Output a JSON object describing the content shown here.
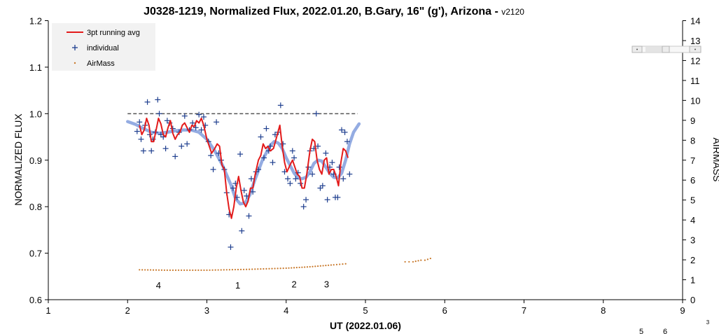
{
  "chart_data": {
    "type": "scatter",
    "title": "J0328-1219, Normalized Flux, 2022.01.20, B.Gary, 16\" (g'), Arizona - ",
    "title_version": "v2120",
    "xlabel": "UT (2022.01.06)",
    "ylabel": "NORMALIZED FLUX",
    "y2label": "AIRMASS",
    "xlim": [
      1,
      9
    ],
    "ylim": [
      0.6,
      1.2
    ],
    "y2lim": [
      0,
      14
    ],
    "x_ticks": [
      "1",
      "2",
      "3",
      "4",
      "5",
      "6",
      "7",
      "8",
      "9"
    ],
    "y_ticks": [
      "0.6",
      "0.7",
      "0.8",
      "0.9",
      "1.0",
      "1.1",
      "1.2"
    ],
    "y2_ticks": [
      "0",
      "1",
      "2",
      "3",
      "4",
      "5",
      "6",
      "7",
      "8",
      "9",
      "10",
      "11",
      "12",
      "13",
      "14"
    ],
    "grid": false,
    "legend_position": "top-left",
    "legend": [
      "3pt running avg",
      "individual",
      "AirMass"
    ],
    "reference_line": {
      "y": 1.0,
      "x": [
        2.0,
        4.9
      ],
      "color": "#555555"
    },
    "series": [
      {
        "name": "individual",
        "marker": "+",
        "color": "#1f3f8f",
        "points": [
          [
            2.12,
            0.962
          ],
          [
            2.15,
            0.982
          ],
          [
            2.17,
            0.945
          ],
          [
            2.2,
            0.92
          ],
          [
            2.22,
            0.975
          ],
          [
            2.25,
            1.025
          ],
          [
            2.28,
            0.955
          ],
          [
            2.3,
            0.92
          ],
          [
            2.32,
            0.945
          ],
          [
            2.35,
            0.96
          ],
          [
            2.38,
            1.03
          ],
          [
            2.4,
            1.0
          ],
          [
            2.42,
            0.955
          ],
          [
            2.45,
            0.95
          ],
          [
            2.48,
            0.925
          ],
          [
            2.5,
            0.985
          ],
          [
            2.53,
            0.98
          ],
          [
            2.57,
            0.968
          ],
          [
            2.6,
            0.908
          ],
          [
            2.65,
            0.96
          ],
          [
            2.68,
            0.93
          ],
          [
            2.72,
            0.995
          ],
          [
            2.75,
            0.935
          ],
          [
            2.78,
            0.965
          ],
          [
            2.82,
            0.98
          ],
          [
            2.86,
            0.97
          ],
          [
            2.9,
            0.998
          ],
          [
            2.93,
            0.965
          ],
          [
            2.96,
            0.993
          ],
          [
            2.98,
            0.975
          ],
          [
            3.02,
            0.94
          ],
          [
            3.05,
            0.91
          ],
          [
            3.08,
            0.88
          ],
          [
            3.12,
            0.982
          ],
          [
            3.15,
            0.915
          ],
          [
            3.18,
            0.9
          ],
          [
            3.22,
            0.88
          ],
          [
            3.25,
            0.83
          ],
          [
            3.28,
            0.783
          ],
          [
            3.3,
            0.713
          ],
          [
            3.33,
            0.84
          ],
          [
            3.36,
            0.85
          ],
          [
            3.38,
            0.82
          ],
          [
            3.42,
            0.913
          ],
          [
            3.44,
            0.748
          ],
          [
            3.47,
            0.835
          ],
          [
            3.5,
            0.823
          ],
          [
            3.53,
            0.78
          ],
          [
            3.56,
            0.86
          ],
          [
            3.58,
            0.832
          ],
          [
            3.62,
            0.875
          ],
          [
            3.65,
            0.88
          ],
          [
            3.68,
            0.95
          ],
          [
            3.72,
            0.905
          ],
          [
            3.75,
            0.968
          ],
          [
            3.78,
            0.92
          ],
          [
            3.8,
            0.93
          ],
          [
            3.83,
            0.895
          ],
          [
            3.86,
            0.955
          ],
          [
            3.9,
            0.96
          ],
          [
            3.93,
            1.018
          ],
          [
            3.96,
            0.935
          ],
          [
            3.98,
            0.875
          ],
          [
            4.02,
            0.86
          ],
          [
            4.05,
            0.85
          ],
          [
            4.08,
            0.92
          ],
          [
            4.1,
            0.905
          ],
          [
            4.12,
            0.86
          ],
          [
            4.15,
            0.873
          ],
          [
            4.18,
            0.85
          ],
          [
            4.22,
            0.8
          ],
          [
            4.25,
            0.815
          ],
          [
            4.28,
            0.885
          ],
          [
            4.3,
            0.92
          ],
          [
            4.33,
            0.87
          ],
          [
            4.35,
            0.925
          ],
          [
            4.38,
            1.0
          ],
          [
            4.4,
            0.93
          ],
          [
            4.43,
            0.84
          ],
          [
            4.46,
            0.845
          ],
          [
            4.5,
            0.915
          ],
          [
            4.52,
            0.815
          ],
          [
            4.55,
            0.885
          ],
          [
            4.58,
            0.895
          ],
          [
            4.6,
            0.87
          ],
          [
            4.62,
            0.82
          ],
          [
            4.65,
            0.82
          ],
          [
            4.67,
            0.885
          ],
          [
            4.7,
            0.965
          ],
          [
            4.72,
            0.86
          ],
          [
            4.74,
            0.96
          ],
          [
            4.77,
            0.94
          ],
          [
            4.8,
            0.87
          ]
        ]
      },
      {
        "name": "3pt running avg",
        "type": "line",
        "color": "#e31b1b",
        "points": [
          [
            2.15,
            0.975
          ],
          [
            2.18,
            0.955
          ],
          [
            2.21,
            0.965
          ],
          [
            2.24,
            0.99
          ],
          [
            2.27,
            0.975
          ],
          [
            2.3,
            0.94
          ],
          [
            2.33,
            0.94
          ],
          [
            2.36,
            0.965
          ],
          [
            2.39,
            0.99
          ],
          [
            2.42,
            0.978
          ],
          [
            2.45,
            0.955
          ],
          [
            2.48,
            0.95
          ],
          [
            2.51,
            0.97
          ],
          [
            2.54,
            0.985
          ],
          [
            2.57,
            0.958
          ],
          [
            2.6,
            0.945
          ],
          [
            2.63,
            0.955
          ],
          [
            2.66,
            0.96
          ],
          [
            2.69,
            0.975
          ],
          [
            2.72,
            0.98
          ],
          [
            2.75,
            0.97
          ],
          [
            2.78,
            0.96
          ],
          [
            2.81,
            0.975
          ],
          [
            2.84,
            0.972
          ],
          [
            2.87,
            0.985
          ],
          [
            2.9,
            0.98
          ],
          [
            2.93,
            0.99
          ],
          [
            2.96,
            0.975
          ],
          [
            3.0,
            0.945
          ],
          [
            3.03,
            0.93
          ],
          [
            3.06,
            0.915
          ],
          [
            3.1,
            0.925
          ],
          [
            3.13,
            0.935
          ],
          [
            3.16,
            0.93
          ],
          [
            3.19,
            0.89
          ],
          [
            3.22,
            0.88
          ],
          [
            3.25,
            0.83
          ],
          [
            3.28,
            0.795
          ],
          [
            3.31,
            0.775
          ],
          [
            3.34,
            0.8
          ],
          [
            3.37,
            0.84
          ],
          [
            3.4,
            0.865
          ],
          [
            3.43,
            0.835
          ],
          [
            3.46,
            0.81
          ],
          [
            3.49,
            0.8
          ],
          [
            3.52,
            0.812
          ],
          [
            3.55,
            0.84
          ],
          [
            3.58,
            0.84
          ],
          [
            3.61,
            0.87
          ],
          [
            3.65,
            0.9
          ],
          [
            3.68,
            0.91
          ],
          [
            3.71,
            0.935
          ],
          [
            3.74,
            0.925
          ],
          [
            3.77,
            0.93
          ],
          [
            3.8,
            0.92
          ],
          [
            3.84,
            0.925
          ],
          [
            3.88,
            0.95
          ],
          [
            3.92,
            0.975
          ],
          [
            3.95,
            0.93
          ],
          [
            3.98,
            0.895
          ],
          [
            4.01,
            0.875
          ],
          [
            4.05,
            0.89
          ],
          [
            4.08,
            0.9
          ],
          [
            4.11,
            0.885
          ],
          [
            4.14,
            0.87
          ],
          [
            4.17,
            0.865
          ],
          [
            4.2,
            0.84
          ],
          [
            4.23,
            0.84
          ],
          [
            4.26,
            0.87
          ],
          [
            4.3,
            0.92
          ],
          [
            4.33,
            0.945
          ],
          [
            4.36,
            0.94
          ],
          [
            4.39,
            0.9
          ],
          [
            4.42,
            0.88
          ],
          [
            4.45,
            0.87
          ],
          [
            4.48,
            0.9
          ],
          [
            4.51,
            0.905
          ],
          [
            4.54,
            0.87
          ],
          [
            4.57,
            0.88
          ],
          [
            4.6,
            0.88
          ],
          [
            4.63,
            0.865
          ],
          [
            4.66,
            0.845
          ],
          [
            4.69,
            0.895
          ],
          [
            4.72,
            0.925
          ],
          [
            4.75,
            0.92
          ],
          [
            4.78,
            0.905
          ]
        ]
      },
      {
        "name": "model",
        "type": "line",
        "color": "#8ea8e0",
        "points": [
          [
            2.0,
            0.983
          ],
          [
            2.1,
            0.977
          ],
          [
            2.2,
            0.968
          ],
          [
            2.3,
            0.96
          ],
          [
            2.4,
            0.958
          ],
          [
            2.5,
            0.96
          ],
          [
            2.6,
            0.963
          ],
          [
            2.7,
            0.965
          ],
          [
            2.8,
            0.965
          ],
          [
            2.9,
            0.96
          ],
          [
            3.0,
            0.945
          ],
          [
            3.1,
            0.92
          ],
          [
            3.2,
            0.888
          ],
          [
            3.3,
            0.848
          ],
          [
            3.36,
            0.818
          ],
          [
            3.42,
            0.806
          ],
          [
            3.48,
            0.808
          ],
          [
            3.54,
            0.825
          ],
          [
            3.6,
            0.855
          ],
          [
            3.7,
            0.9
          ],
          [
            3.8,
            0.932
          ],
          [
            3.85,
            0.94
          ],
          [
            3.9,
            0.937
          ],
          [
            3.95,
            0.925
          ],
          [
            4.0,
            0.905
          ],
          [
            4.1,
            0.872
          ],
          [
            4.15,
            0.862
          ],
          [
            4.2,
            0.86
          ],
          [
            4.25,
            0.863
          ],
          [
            4.3,
            0.875
          ],
          [
            4.35,
            0.893
          ],
          [
            4.4,
            0.9
          ],
          [
            4.45,
            0.898
          ],
          [
            4.5,
            0.885
          ],
          [
            4.55,
            0.872
          ],
          [
            4.6,
            0.863
          ],
          [
            4.65,
            0.862
          ],
          [
            4.7,
            0.872
          ],
          [
            4.75,
            0.9
          ],
          [
            4.8,
            0.935
          ],
          [
            4.85,
            0.96
          ],
          [
            4.92,
            0.978
          ]
        ]
      },
      {
        "name": "AirMass",
        "marker": "dot",
        "color": "#c8782a",
        "axis": "y2",
        "points": [
          [
            2.15,
            1.5
          ],
          [
            2.5,
            1.48
          ],
          [
            3.0,
            1.48
          ],
          [
            3.5,
            1.52
          ],
          [
            4.0,
            1.58
          ],
          [
            4.3,
            1.65
          ],
          [
            4.6,
            1.75
          ],
          [
            4.75,
            1.8
          ],
          [
            5.5,
            1.9
          ],
          [
            5.55,
            1.9
          ],
          [
            5.6,
            1.9
          ],
          [
            5.7,
            1.98
          ],
          [
            5.75,
            1.98
          ],
          [
            5.82,
            2.07
          ]
        ]
      }
    ],
    "annotations": [
      {
        "text": "4",
        "x": 2.39,
        "y": 0.624
      },
      {
        "text": "1",
        "x": 3.39,
        "y": 0.624
      },
      {
        "text": "2",
        "x": 4.1,
        "y": 0.626
      },
      {
        "text": "3",
        "x": 4.51,
        "y": 0.626
      }
    ],
    "stray_labels": [
      "5",
      "6",
      "3"
    ]
  }
}
